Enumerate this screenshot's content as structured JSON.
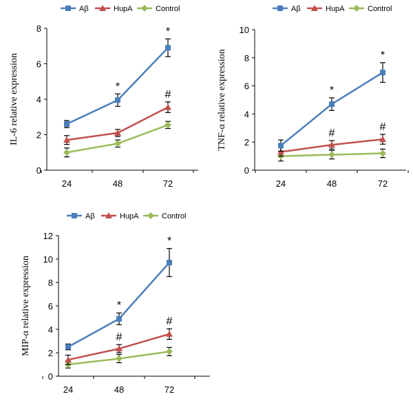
{
  "chart_data": [
    {
      "type": "line",
      "ylabel": "IL-6 relative expression",
      "xlabel": "",
      "categories": [
        "24",
        "48",
        "72"
      ],
      "ylim": [
        0,
        8
      ],
      "yticks": [
        "0",
        "2",
        "4",
        "6",
        "8"
      ],
      "series": [
        {
          "name": "Aβ",
          "color": "#4a7ebb",
          "marker": "square",
          "values": [
            2.6,
            3.95,
            6.9
          ],
          "errors": [
            0.2,
            0.35,
            0.5
          ]
        },
        {
          "name": "HupA",
          "color": "#c0504d",
          "marker": "triangle",
          "values": [
            1.7,
            2.1,
            3.55
          ],
          "errors": [
            0.25,
            0.2,
            0.3
          ]
        },
        {
          "name": "Control",
          "color": "#9bbb59",
          "marker": "diamond",
          "values": [
            1.0,
            1.5,
            2.55
          ],
          "errors": [
            0.25,
            0.2,
            0.2
          ]
        }
      ],
      "annotations": [
        {
          "label": "*",
          "series": 0,
          "index": 1
        },
        {
          "label": "*",
          "series": 0,
          "index": 2
        },
        {
          "label": "#",
          "series": 1,
          "index": 2
        }
      ]
    },
    {
      "type": "line",
      "ylabel": "TNF-α relative expression",
      "xlabel": "",
      "categories": [
        "24",
        "48",
        "72"
      ],
      "ylim": [
        0,
        10
      ],
      "yticks": [
        "0",
        "2",
        "4",
        "6",
        "8",
        "10"
      ],
      "series": [
        {
          "name": "Aβ",
          "color": "#4a7ebb",
          "marker": "square",
          "values": [
            1.75,
            4.7,
            6.95
          ],
          "errors": [
            0.4,
            0.45,
            0.7
          ]
        },
        {
          "name": "HupA",
          "color": "#c0504d",
          "marker": "triangle",
          "values": [
            1.3,
            1.8,
            2.2
          ],
          "errors": [
            0.3,
            0.3,
            0.35
          ]
        },
        {
          "name": "Control",
          "color": "#9bbb59",
          "marker": "diamond",
          "values": [
            1.0,
            1.1,
            1.2
          ],
          "errors": [
            0.35,
            0.3,
            0.3
          ]
        }
      ],
      "annotations": [
        {
          "label": "*",
          "series": 0,
          "index": 1
        },
        {
          "label": "*",
          "series": 0,
          "index": 2
        },
        {
          "label": "#",
          "series": 1,
          "index": 1
        },
        {
          "label": "#",
          "series": 1,
          "index": 2
        }
      ]
    },
    {
      "type": "line",
      "ylabel": "MIP-α relative expression",
      "xlabel": "",
      "categories": [
        "24",
        "48",
        "72"
      ],
      "ylim": [
        0,
        12
      ],
      "yticks": [
        "0",
        "2",
        "4",
        "6",
        "8",
        "10",
        "12"
      ],
      "series": [
        {
          "name": "Aβ",
          "color": "#4a7ebb",
          "marker": "square",
          "values": [
            2.5,
            4.9,
            9.7
          ],
          "errors": [
            0.25,
            0.5,
            1.2
          ]
        },
        {
          "name": "HupA",
          "color": "#c0504d",
          "marker": "triangle",
          "values": [
            1.4,
            2.35,
            3.6
          ],
          "errors": [
            0.4,
            0.35,
            0.45
          ]
        },
        {
          "name": "Control",
          "color": "#9bbb59",
          "marker": "diamond",
          "values": [
            1.0,
            1.5,
            2.1
          ],
          "errors": [
            0.3,
            0.35,
            0.35
          ]
        }
      ],
      "annotations": [
        {
          "label": "*",
          "series": 0,
          "index": 1
        },
        {
          "label": "*",
          "series": 0,
          "index": 2
        },
        {
          "label": "#",
          "series": 1,
          "index": 1
        },
        {
          "label": "#",
          "series": 1,
          "index": 2
        }
      ]
    }
  ]
}
